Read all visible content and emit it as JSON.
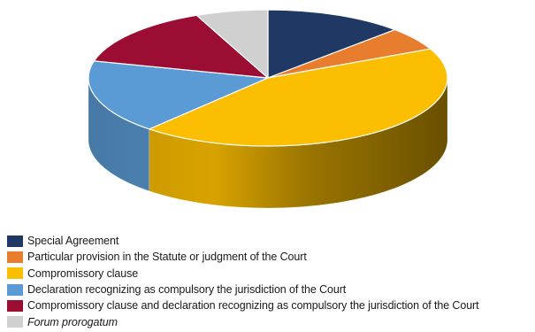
{
  "chart_data": {
    "type": "pie",
    "style": "3d",
    "start_angle": "12 o'clock",
    "direction": "clockwise",
    "legend_position": "bottom",
    "slices": [
      {
        "label": "Special Agreement",
        "value": 12.5,
        "color": "#1f3864",
        "italic": false
      },
      {
        "label": "Particular provision in the Statute or judgment of the Court",
        "value": 5.5,
        "color": "#e87d2e",
        "italic": false
      },
      {
        "label": "Compromissory clause",
        "value": 43.5,
        "color": "#fbbe00",
        "italic": false
      },
      {
        "label": "Declaration recognizing as compulsory the jurisdiction of the Court",
        "value": 17.5,
        "color": "#5b9bd5",
        "italic": false
      },
      {
        "label": "Compromissory clause and declaration recognizing as compulsory the jurisdiction of the Court",
        "value": 14.5,
        "color": "#9b0d32",
        "italic": false
      },
      {
        "label": "Forum prorogatum",
        "value": 6.5,
        "color": "#d0d0d0",
        "italic": true
      }
    ]
  }
}
